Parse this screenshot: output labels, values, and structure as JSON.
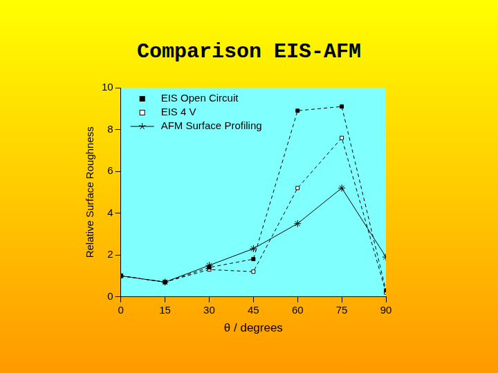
{
  "chart_data": {
    "type": "line",
    "title": "Comparison EIS-AFM",
    "x_label": "θ / degrees",
    "y_label": "Relative Surface Roughness",
    "x": [
      0,
      15,
      30,
      45,
      60,
      75,
      90
    ],
    "series": [
      {
        "name": "EIS Open Circuit",
        "color": "#000000",
        "marker": "square",
        "line_style": "dashed",
        "values": [
          1.0,
          0.7,
          1.4,
          1.8,
          8.9,
          9.1,
          0.3
        ]
      },
      {
        "name": "EIS 4 V",
        "color": "#ffffff",
        "marker": "square",
        "line_style": "dashed",
        "values": [
          1.0,
          0.7,
          1.3,
          1.2,
          5.2,
          7.6,
          0.2
        ]
      },
      {
        "name": "AFM Surface Profiling",
        "color": "#000000",
        "marker": "star",
        "line_style": "solid",
        "values": [
          1.0,
          0.7,
          1.5,
          2.3,
          3.5,
          5.2,
          1.9
        ]
      }
    ],
    "xlim": [
      0,
      90
    ],
    "xticks": [
      0,
      15,
      30,
      45,
      60,
      75,
      90
    ],
    "ylim": [
      0,
      10
    ],
    "yticks": [
      0,
      2,
      4,
      6,
      8,
      10
    ],
    "grid": false,
    "legend": "upper left"
  }
}
